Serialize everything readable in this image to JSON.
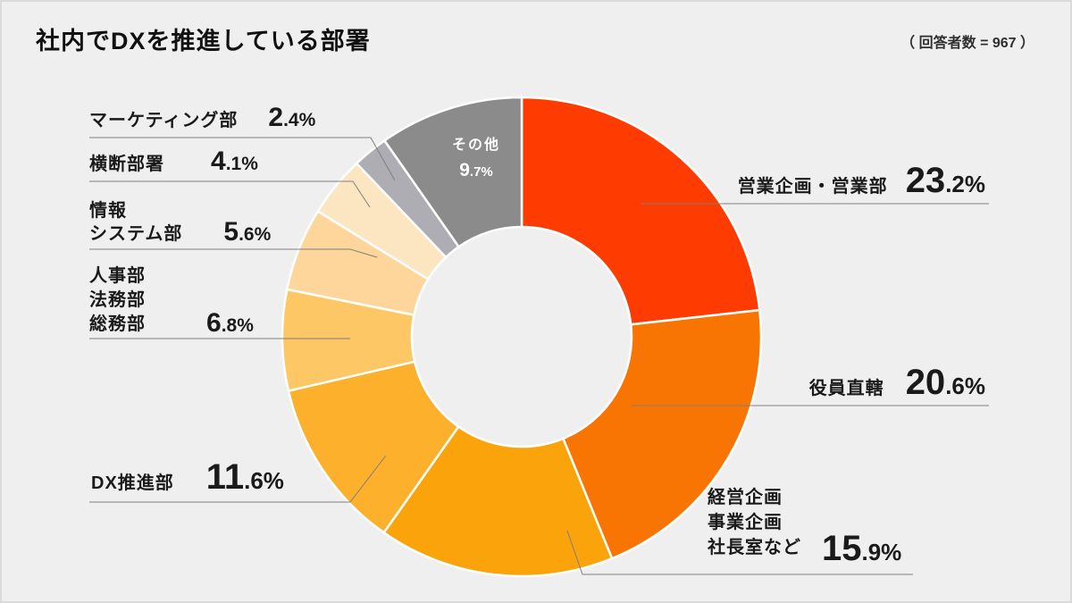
{
  "header": {
    "title": "社内でDXを推進している部署",
    "respondents": "（ 回答者数 = 967 ）"
  },
  "chart_data": {
    "type": "pie",
    "subtype": "donut",
    "title": "社内でDXを推進している部署",
    "respondents_note": "（ 回答者数 = 967 ）",
    "unit": "%",
    "start_angle_deg": 0,
    "direction": "clockwise",
    "legend_position": "callout-labels",
    "segments": [
      {
        "label": "営業企画・営業部",
        "label_lines": [
          "営業企画・営業部"
        ],
        "value": 23.2,
        "color": "#fe3b00"
      },
      {
        "label": "役員直轄",
        "label_lines": [
          "役員直轄"
        ],
        "value": 20.6,
        "color": "#f87503"
      },
      {
        "label": "経営企画 事業企画 社長室など",
        "label_lines": [
          "経営企画",
          "事業企画",
          "社長室など"
        ],
        "value": 15.9,
        "color": "#fba30b"
      },
      {
        "label": "DX推進部",
        "label_lines": [
          "DX推進部"
        ],
        "value": 11.6,
        "color": "#fcb02b"
      },
      {
        "label": "人事部 法務部 総務部",
        "label_lines": [
          "人事部",
          "法務部",
          "総務部"
        ],
        "value": 6.8,
        "color": "#fec765"
      },
      {
        "label": "情報システム部",
        "label_lines": [
          "情報",
          "システム部"
        ],
        "value": 5.6,
        "color": "#fed59a"
      },
      {
        "label": "横断部署",
        "label_lines": [
          "横断部署"
        ],
        "value": 4.1,
        "color": "#fce5c1"
      },
      {
        "label": "マーケティング部",
        "label_lines": [
          "マーケティング部"
        ],
        "value": 2.4,
        "color": "#aeadb3"
      },
      {
        "label": "その他",
        "label_lines": [
          "その他"
        ],
        "value": 9.7,
        "color": "#8c8b8b"
      }
    ]
  }
}
